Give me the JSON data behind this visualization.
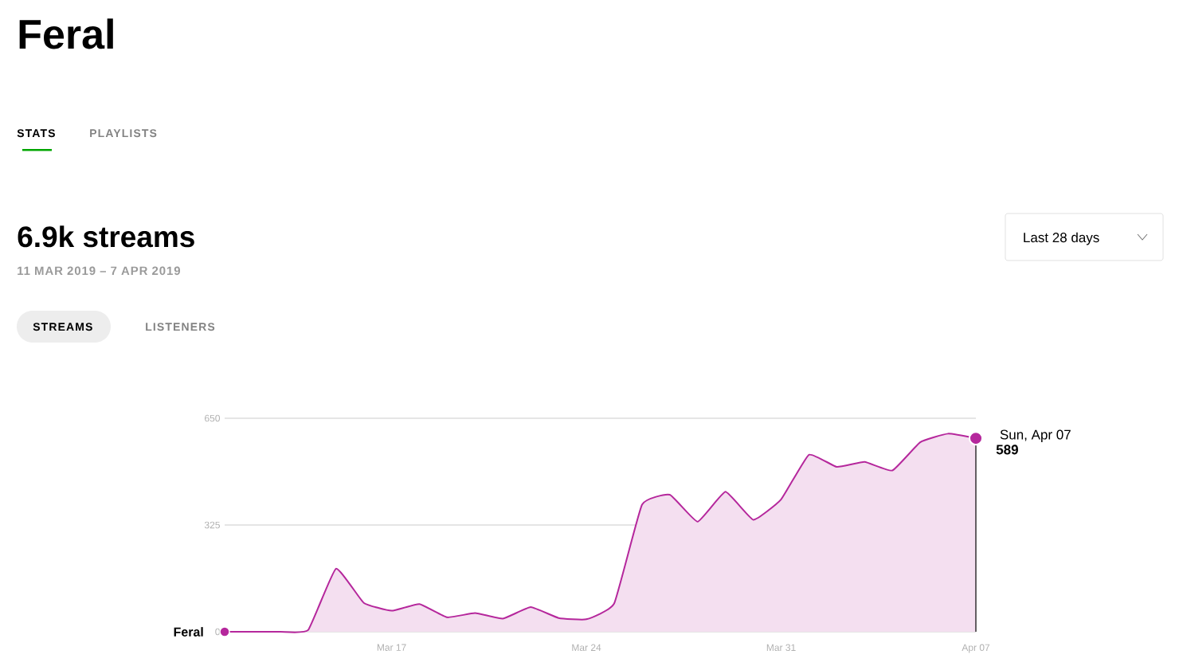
{
  "chart_data": {
    "type": "area",
    "title": "Feral",
    "subtitle": "6.9k streams",
    "annotations": [
      "STATS",
      "PLAYLISTS",
      "11 MAR 2019 – 7 APR 2019",
      "STREAMS",
      "LISTENERS",
      "Last 28 days",
      {
        "text": "Sun, Apr 07",
        "x": "2019-04-07",
        "y": 589
      }
    ],
    "x": [
      "2019-03-11",
      "2019-03-12",
      "2019-03-13",
      "2019-03-14",
      "2019-03-15",
      "2019-03-16",
      "2019-03-17",
      "2019-03-18",
      "2019-03-19",
      "2019-03-20",
      "2019-03-21",
      "2019-03-22",
      "2019-03-23",
      "2019-03-24",
      "2019-03-25",
      "2019-03-26",
      "2019-03-27",
      "2019-03-28",
      "2019-03-29",
      "2019-03-30",
      "2019-03-31",
      "2019-04-01",
      "2019-04-02",
      "2019-04-03",
      "2019-04-04",
      "2019-04-05",
      "2019-04-06",
      "2019-04-07"
    ],
    "series": [
      {
        "name": "Feral",
        "color": "#b5279c",
        "values": [
          0,
          0,
          0,
          5,
          192,
          88,
          64,
          84,
          44,
          57,
          40,
          75,
          42,
          38,
          86,
          387,
          417,
          335,
          426,
          341,
          403,
          539,
          502,
          517,
          491,
          577,
          603,
          589
        ],
        "value_labels": [
          null,
          null,
          null,
          null,
          null,
          null,
          null,
          null,
          null,
          null,
          null,
          null,
          null,
          null,
          null,
          null,
          null,
          null,
          null,
          null,
          null,
          null,
          null,
          null,
          null,
          null,
          null,
          "589"
        ]
      }
    ],
    "xlim": [
      "2019-03-11",
      "2019-04-07"
    ],
    "xticks": [
      {
        "value": "2019-03-17",
        "label": "Mar 17"
      },
      {
        "value": "2019-03-24",
        "label": "Mar 24"
      },
      {
        "value": "2019-03-31",
        "label": "Mar 31"
      },
      {
        "value": "2019-04-07",
        "label": "Apr 07"
      }
    ],
    "ylim": [
      0,
      650
    ],
    "yticks": [
      0,
      325,
      650
    ],
    "grid": "y"
  }
}
